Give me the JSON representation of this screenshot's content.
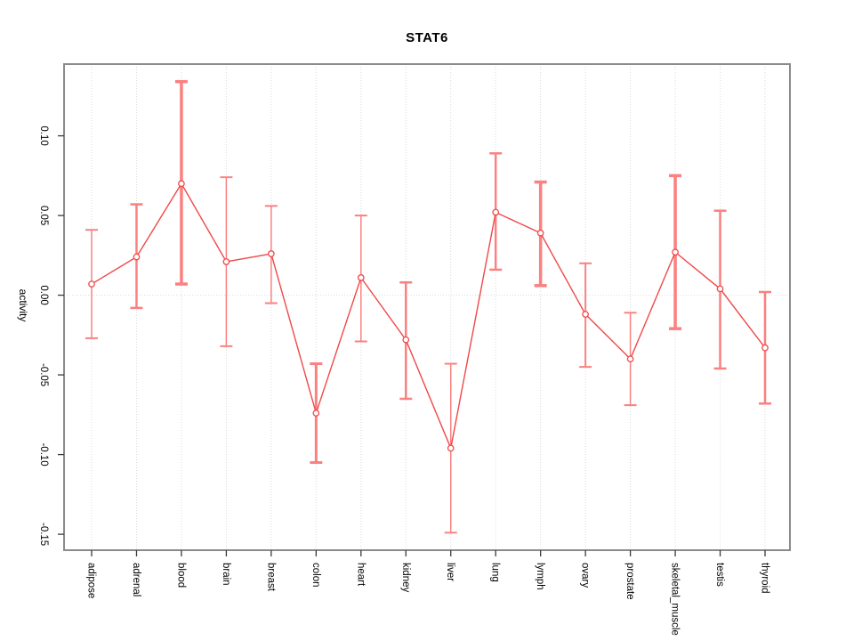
{
  "page": {
    "background": "#ffffff"
  },
  "chart_data": {
    "type": "line",
    "title": "STAT6",
    "xlabel": "",
    "ylabel": "activity",
    "legend": "none",
    "grid": "dotted vertical gridline at each category; dotted horizontal line at y=0",
    "categories": [
      "adipose",
      "adrenal",
      "blood",
      "brain",
      "breast",
      "colon",
      "heart",
      "kidney",
      "liver",
      "lung",
      "lymph",
      "ovary",
      "prostate",
      "skeletal_muscle",
      "testis",
      "thyroid"
    ],
    "series": [
      {
        "name": "STAT6 activity",
        "values": [
          0.007,
          0.024,
          0.07,
          0.021,
          0.026,
          -0.074,
          0.011,
          -0.028,
          -0.096,
          0.052,
          0.039,
          -0.012,
          -0.04,
          0.027,
          0.004,
          -0.033
        ],
        "lower": [
          -0.027,
          -0.008,
          0.007,
          -0.032,
          -0.005,
          -0.105,
          -0.029,
          -0.065,
          -0.149,
          0.016,
          0.006,
          -0.045,
          -0.069,
          -0.021,
          -0.046,
          -0.068
        ],
        "upper": [
          0.041,
          0.057,
          0.134,
          0.074,
          0.056,
          -0.043,
          0.05,
          0.008,
          -0.043,
          0.089,
          0.071,
          0.02,
          -0.011,
          0.075,
          0.053,
          0.002
        ]
      }
    ],
    "error_bar_widths": [
      1.5,
      2.5,
      3.5,
      1.5,
      1.5,
      3,
      1.5,
      2.5,
      1.5,
      2.5,
      3.5,
      2,
      1.5,
      3.5,
      2.5,
      2.5
    ],
    "ylim": [
      -0.16,
      0.145
    ],
    "y_ticks": [
      0.1,
      0.05,
      0.0,
      -0.05,
      -0.1,
      -0.15
    ],
    "y_tick_labels": [
      "0.10",
      "0.05",
      "0.00",
      "-0.05",
      "-0.10",
      "-0.15"
    ],
    "colors": {
      "point_line": "#f04848",
      "error_bar": "#fb8080",
      "grid": "#d9d9d9",
      "box_border": "#8b8b8b",
      "tick": "#3a3a3a",
      "text": "#000000"
    }
  }
}
